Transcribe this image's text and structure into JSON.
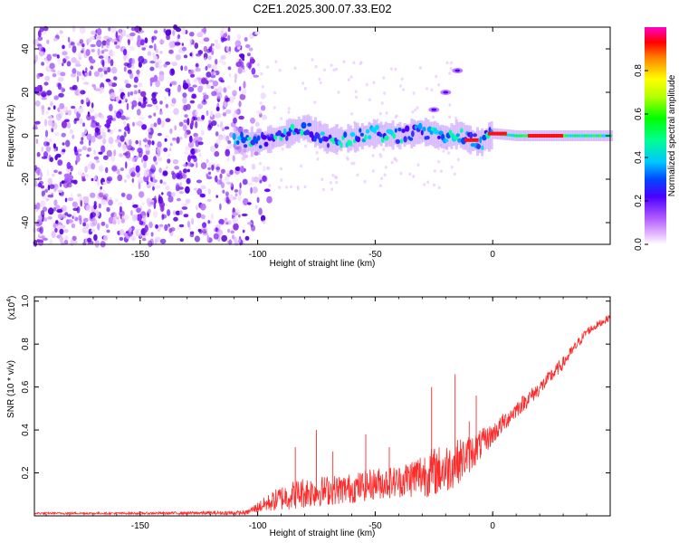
{
  "page": {
    "title": "C2E1.2025.300.07.33.E02"
  },
  "chart_data": [
    {
      "type": "heatmap",
      "title": "C2E1.2025.300.07.33.E02",
      "xlabel": "Height of straight line (km)",
      "ylabel": "Frequency (Hz)",
      "xlim": [
        -195,
        50
      ],
      "ylim": [
        -50,
        50
      ],
      "x_ticks": [
        -150,
        -100,
        -50,
        0
      ],
      "x_tick_labels": [
        "-150",
        "-100",
        "-50",
        "0"
      ],
      "y_ticks": [
        -40,
        -20,
        0,
        20,
        40
      ],
      "y_tick_labels": [
        "-40",
        "-20",
        "0",
        "20",
        "40"
      ],
      "noise_region_x": [
        -195,
        -105
      ],
      "ridge": {
        "x": [
          -110,
          -100,
          -90,
          -80,
          -70,
          -60,
          -50,
          -40,
          -30,
          -20,
          -15,
          -10,
          -5,
          0,
          10,
          20,
          30,
          40,
          50
        ],
        "freq": [
          -2,
          -3,
          0,
          4,
          -2,
          -1,
          1,
          0,
          2,
          -1,
          1,
          -2,
          -3,
          1,
          0,
          0,
          0,
          0,
          0
        ]
      },
      "branch": {
        "x": [
          -25,
          -20,
          -15
        ],
        "freq": [
          12,
          20,
          30
        ]
      },
      "colorbar": {
        "label": "Normalized spectral amplitude",
        "range": [
          0.0,
          1.0
        ],
        "ticks": [
          0.0,
          0.2,
          0.4,
          0.6,
          0.8
        ],
        "tick_labels": [
          "0.0",
          "0.2",
          "0.4",
          "0.6",
          "0.8"
        ]
      }
    },
    {
      "type": "line",
      "title": "",
      "xlabel": "Height of straight line (km)",
      "ylabel": "SNR (10 * v/v)",
      "yunit_label": "(x10",
      "yunit_exp": "4",
      "yunit_close": ")",
      "xlim": [
        -195,
        50
      ],
      "ylim": [
        0,
        1.02
      ],
      "x_ticks": [
        -150,
        -100,
        -50,
        0
      ],
      "x_tick_labels": [
        "-150",
        "-100",
        "-50",
        "0"
      ],
      "y_ticks": [
        0.2,
        0.4,
        0.6,
        0.8,
        1.0
      ],
      "y_tick_labels": [
        "0.2",
        "0.4",
        "0.6",
        "0.8",
        "1.0"
      ],
      "color": "#ff2a2a",
      "envelope": {
        "x": [
          -195,
          -150,
          -105,
          -100,
          -90,
          -80,
          -70,
          -60,
          -50,
          -40,
          -30,
          -20,
          -10,
          0,
          10,
          20,
          30,
          40,
          50
        ],
        "base": [
          0.01,
          0.01,
          0.01,
          0.03,
          0.06,
          0.08,
          0.09,
          0.1,
          0.12,
          0.13,
          0.15,
          0.17,
          0.25,
          0.36,
          0.48,
          0.58,
          0.7,
          0.85,
          0.92
        ],
        "amp": [
          0.01,
          0.01,
          0.02,
          0.05,
          0.12,
          0.15,
          0.14,
          0.14,
          0.15,
          0.15,
          0.22,
          0.24,
          0.18,
          0.1,
          0.08,
          0.07,
          0.06,
          0.04,
          0.03
        ]
      },
      "spikes": [
        {
          "x": -84,
          "y": 0.32
        },
        {
          "x": -75,
          "y": 0.4
        },
        {
          "x": -68,
          "y": 0.3
        },
        {
          "x": -54,
          "y": 0.38
        },
        {
          "x": -44,
          "y": 0.32
        },
        {
          "x": -26,
          "y": 0.6
        },
        {
          "x": -16,
          "y": 0.66
        },
        {
          "x": -10,
          "y": 0.44
        },
        {
          "x": -7,
          "y": 0.56
        },
        {
          "x": 25,
          "y": 0.68
        }
      ]
    }
  ]
}
